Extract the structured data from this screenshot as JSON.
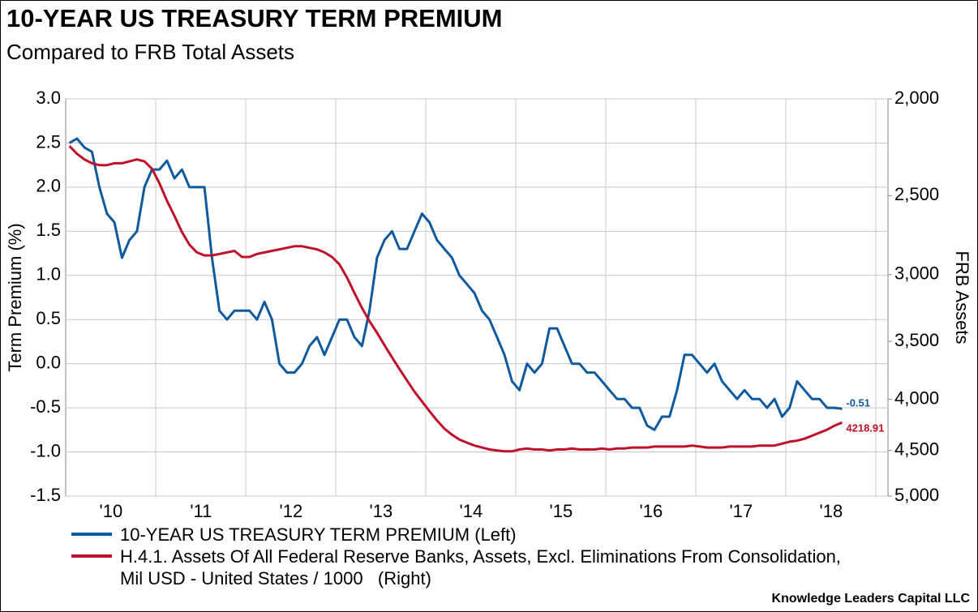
{
  "chart_data": {
    "type": "line",
    "title": "10-YEAR US TREASURY TERM PREMIUM",
    "subtitle": "Compared to FRB Total Assets",
    "ylabel": "Term Premium (%)",
    "y2label": "FRB Assets",
    "source": "Knowledge Leaders Capital LLC",
    "categories": [
      null,
      null,
      null,
      null,
      null,
      "'10",
      null,
      null,
      null,
      null,
      null,
      null,
      null,
      null,
      null,
      null,
      null,
      "'11",
      null,
      null,
      null,
      null,
      null,
      null,
      null,
      null,
      null,
      null,
      null,
      "'12",
      null,
      null,
      null,
      null,
      null,
      null,
      null,
      null,
      null,
      null,
      null,
      "'13",
      null,
      null,
      null,
      null,
      null,
      null,
      null,
      null,
      null,
      null,
      null,
      "'14",
      null,
      null,
      null,
      null,
      null,
      null,
      null,
      null,
      null,
      null,
      null,
      "'15",
      null,
      null,
      null,
      null,
      null,
      null,
      null,
      null,
      null,
      null,
      null,
      "'16",
      null,
      null,
      null,
      null,
      null,
      null,
      null,
      null,
      null,
      null,
      null,
      "'17",
      null,
      null,
      null,
      null,
      null,
      null,
      null,
      null,
      null,
      null,
      null,
      "'18",
      null,
      null
    ],
    "series": [
      {
        "name": "10-YEAR US TREASURY TERM PREMIUM (Left)",
        "color": "#0f5a9e",
        "axis": "y",
        "values": [
          2.5,
          2.55,
          2.45,
          2.4,
          2.0,
          1.7,
          1.6,
          1.2,
          1.4,
          1.5,
          2.0,
          2.2,
          2.2,
          2.3,
          2.1,
          2.2,
          2.0,
          2.0,
          2.0,
          1.2,
          0.6,
          0.5,
          0.6,
          0.6,
          0.6,
          0.5,
          0.7,
          0.5,
          0.0,
          -0.1,
          -0.1,
          0.0,
          0.2,
          0.3,
          0.1,
          0.3,
          0.5,
          0.5,
          0.3,
          0.2,
          0.6,
          1.2,
          1.4,
          1.5,
          1.3,
          1.3,
          1.5,
          1.7,
          1.6,
          1.4,
          1.3,
          1.2,
          1.0,
          0.9,
          0.8,
          0.6,
          0.5,
          0.3,
          0.1,
          -0.2,
          -0.3,
          0.0,
          -0.1,
          0.0,
          0.4,
          0.4,
          0.2,
          0.0,
          0.0,
          -0.1,
          -0.1,
          -0.2,
          -0.3,
          -0.4,
          -0.4,
          -0.5,
          -0.5,
          -0.7,
          -0.75,
          -0.6,
          -0.6,
          -0.3,
          0.1,
          0.1,
          0.0,
          -0.1,
          0.0,
          -0.2,
          -0.3,
          -0.4,
          -0.3,
          -0.4,
          -0.4,
          -0.5,
          -0.4,
          -0.6,
          -0.5,
          -0.2,
          -0.3,
          -0.4,
          -0.4,
          -0.5,
          -0.5,
          -0.51
        ]
      },
      {
        "name": "H.4.1. Assets Of All Federal Reserve Banks, Assets, Excl. Eliminations From Consolidation, Mil USD - United States / 1000   (Right)",
        "color": "#c0102a",
        "axis": "y2",
        "values": [
          2230,
          2270,
          2300,
          2320,
          2330,
          2330,
          2320,
          2320,
          2310,
          2300,
          2310,
          2350,
          2430,
          2530,
          2620,
          2720,
          2800,
          2850,
          2870,
          2870,
          2860,
          2850,
          2840,
          2880,
          2880,
          2860,
          2850,
          2840,
          2830,
          2820,
          2810,
          2810,
          2820,
          2830,
          2850,
          2880,
          2930,
          3020,
          3130,
          3240,
          3340,
          3430,
          3530,
          3630,
          3730,
          3830,
          3930,
          4020,
          4110,
          4200,
          4280,
          4340,
          4390,
          4420,
          4450,
          4470,
          4490,
          4500,
          4510,
          4510,
          4490,
          4480,
          4490,
          4490,
          4500,
          4490,
          4490,
          4480,
          4490,
          4490,
          4490,
          4480,
          4490,
          4480,
          4480,
          4470,
          4470,
          4470,
          4460,
          4460,
          4460,
          4460,
          4460,
          4450,
          4460,
          4470,
          4470,
          4470,
          4460,
          4460,
          4460,
          4460,
          4450,
          4450,
          4450,
          4430,
          4410,
          4400,
          4380,
          4350,
          4320,
          4290,
          4250,
          4218.91
        ]
      }
    ],
    "ylim": [
      -1.5,
      3
    ],
    "yticks": [
      {
        "value": 3,
        "label": "3.0"
      },
      2.5,
      {
        "value": 2,
        "label": "2.0"
      },
      1.5,
      {
        "value": 1,
        "label": "1.0"
      },
      0.5,
      {
        "value": 0,
        "label": "0.0"
      },
      -0.5,
      {
        "value": -1,
        "label": "-1.0"
      },
      -1.5
    ],
    "y2lim": [
      5000,
      2000
    ],
    "y2log": true,
    "y2ticks": [
      {
        "value": 2000,
        "label": "2,000"
      },
      {
        "value": 2500,
        "label": "2,500"
      },
      {
        "value": 3000,
        "label": "3,000"
      },
      {
        "value": 3500,
        "label": "3,500"
      },
      {
        "value": 4000,
        "label": "4,000"
      },
      {
        "value": 4500,
        "label": "4,500"
      },
      {
        "value": 5000,
        "label": "5,000"
      }
    ],
    "grid": true,
    "legend": "bottom-left"
  }
}
